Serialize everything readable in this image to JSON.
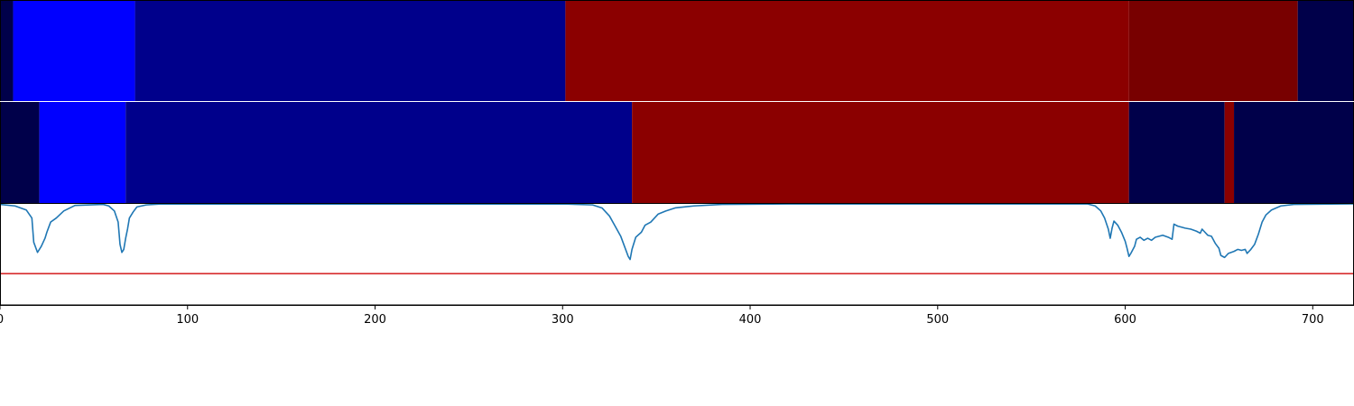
{
  "chart_data": {
    "type": "heatmap",
    "xlim": [
      0,
      722
    ],
    "x_ticks": [
      0,
      100,
      200,
      300,
      400,
      500,
      600,
      700
    ],
    "x_tick_labels": [
      "0",
      "100",
      "200",
      "300",
      "400",
      "500",
      "600",
      "700"
    ],
    "palette": {
      "bright_blue": "#0000ff",
      "dark_blue": "#00008b",
      "navy": "#00004a",
      "dark_red": "#8b0000",
      "maroon": "#780000",
      "line": "#1f77b4",
      "threshold": "#d62728"
    },
    "segment_tracks": [
      {
        "segments": [
          {
            "start": 0,
            "end": 7,
            "color": "navy"
          },
          {
            "start": 7,
            "end": 72,
            "color": "bright_blue"
          },
          {
            "start": 72,
            "end": 301.5,
            "color": "dark_blue"
          },
          {
            "start": 301.5,
            "end": 602,
            "color": "dark_red"
          },
          {
            "start": 602,
            "end": 692,
            "color": "maroon"
          },
          {
            "start": 692,
            "end": 722,
            "color": "navy"
          }
        ]
      },
      {
        "segments": [
          {
            "start": 0,
            "end": 21,
            "color": "navy"
          },
          {
            "start": 21,
            "end": 67,
            "color": "bright_blue"
          },
          {
            "start": 67,
            "end": 337,
            "color": "dark_blue"
          },
          {
            "start": 337,
            "end": 602,
            "color": "dark_red"
          },
          {
            "start": 602,
            "end": 653,
            "color": "navy"
          },
          {
            "start": 653,
            "end": 658,
            "color": "dark_red"
          },
          {
            "start": 658,
            "end": 722,
            "color": "navy"
          }
        ]
      }
    ],
    "line_track": {
      "ylim": [
        0,
        1
      ],
      "threshold": 0.31,
      "points": [
        [
          0,
          0.995
        ],
        [
          8,
          0.98
        ],
        [
          14,
          0.94
        ],
        [
          17,
          0.86
        ],
        [
          18,
          0.62
        ],
        [
          20,
          0.52
        ],
        [
          22,
          0.58
        ],
        [
          24,
          0.66
        ],
        [
          25,
          0.72
        ],
        [
          27,
          0.82
        ],
        [
          30,
          0.86
        ],
        [
          34,
          0.93
        ],
        [
          40,
          0.985
        ],
        [
          55,
          0.995
        ],
        [
          58,
          0.98
        ],
        [
          61,
          0.93
        ],
        [
          63,
          0.82
        ],
        [
          64,
          0.6
        ],
        [
          65,
          0.52
        ],
        [
          66,
          0.55
        ],
        [
          67,
          0.66
        ],
        [
          68,
          0.75
        ],
        [
          69,
          0.86
        ],
        [
          71,
          0.92
        ],
        [
          73,
          0.97
        ],
        [
          78,
          0.99
        ],
        [
          85,
          0.998
        ],
        [
          300,
          0.999
        ],
        [
          316,
          0.99
        ],
        [
          321,
          0.96
        ],
        [
          325,
          0.88
        ],
        [
          328,
          0.78
        ],
        [
          331,
          0.68
        ],
        [
          333,
          0.58
        ],
        [
          335,
          0.48
        ],
        [
          336,
          0.45
        ],
        [
          337,
          0.55
        ],
        [
          339,
          0.67
        ],
        [
          342,
          0.72
        ],
        [
          344,
          0.79
        ],
        [
          347,
          0.82
        ],
        [
          351,
          0.9
        ],
        [
          355,
          0.93
        ],
        [
          360,
          0.96
        ],
        [
          370,
          0.98
        ],
        [
          385,
          0.995
        ],
        [
          420,
          0.999
        ],
        [
          580,
          0.999
        ],
        [
          584,
          0.98
        ],
        [
          587,
          0.93
        ],
        [
          589,
          0.86
        ],
        [
          591,
          0.75
        ],
        [
          592,
          0.66
        ],
        [
          593,
          0.76
        ],
        [
          594,
          0.83
        ],
        [
          596,
          0.79
        ],
        [
          598,
          0.72
        ],
        [
          600,
          0.63
        ],
        [
          601,
          0.56
        ],
        [
          602,
          0.48
        ],
        [
          603,
          0.51
        ],
        [
          605,
          0.58
        ],
        [
          606,
          0.65
        ],
        [
          608,
          0.67
        ],
        [
          610,
          0.64
        ],
        [
          612,
          0.66
        ],
        [
          614,
          0.64
        ],
        [
          616,
          0.67
        ],
        [
          620,
          0.69
        ],
        [
          623,
          0.67
        ],
        [
          625,
          0.65
        ],
        [
          626,
          0.8
        ],
        [
          628,
          0.78
        ],
        [
          632,
          0.76
        ],
        [
          635,
          0.75
        ],
        [
          638,
          0.73
        ],
        [
          640,
          0.71
        ],
        [
          641,
          0.75
        ],
        [
          642,
          0.73
        ],
        [
          644,
          0.69
        ],
        [
          646,
          0.68
        ],
        [
          648,
          0.61
        ],
        [
          650,
          0.56
        ],
        [
          651,
          0.49
        ],
        [
          653,
          0.47
        ],
        [
          655,
          0.51
        ],
        [
          658,
          0.53
        ],
        [
          660,
          0.55
        ],
        [
          662,
          0.54
        ],
        [
          664,
          0.55
        ],
        [
          665,
          0.51
        ],
        [
          667,
          0.55
        ],
        [
          669,
          0.6
        ],
        [
          671,
          0.7
        ],
        [
          673,
          0.82
        ],
        [
          675,
          0.89
        ],
        [
          678,
          0.94
        ],
        [
          683,
          0.98
        ],
        [
          690,
          0.995
        ],
        [
          722,
          1
        ]
      ]
    }
  }
}
